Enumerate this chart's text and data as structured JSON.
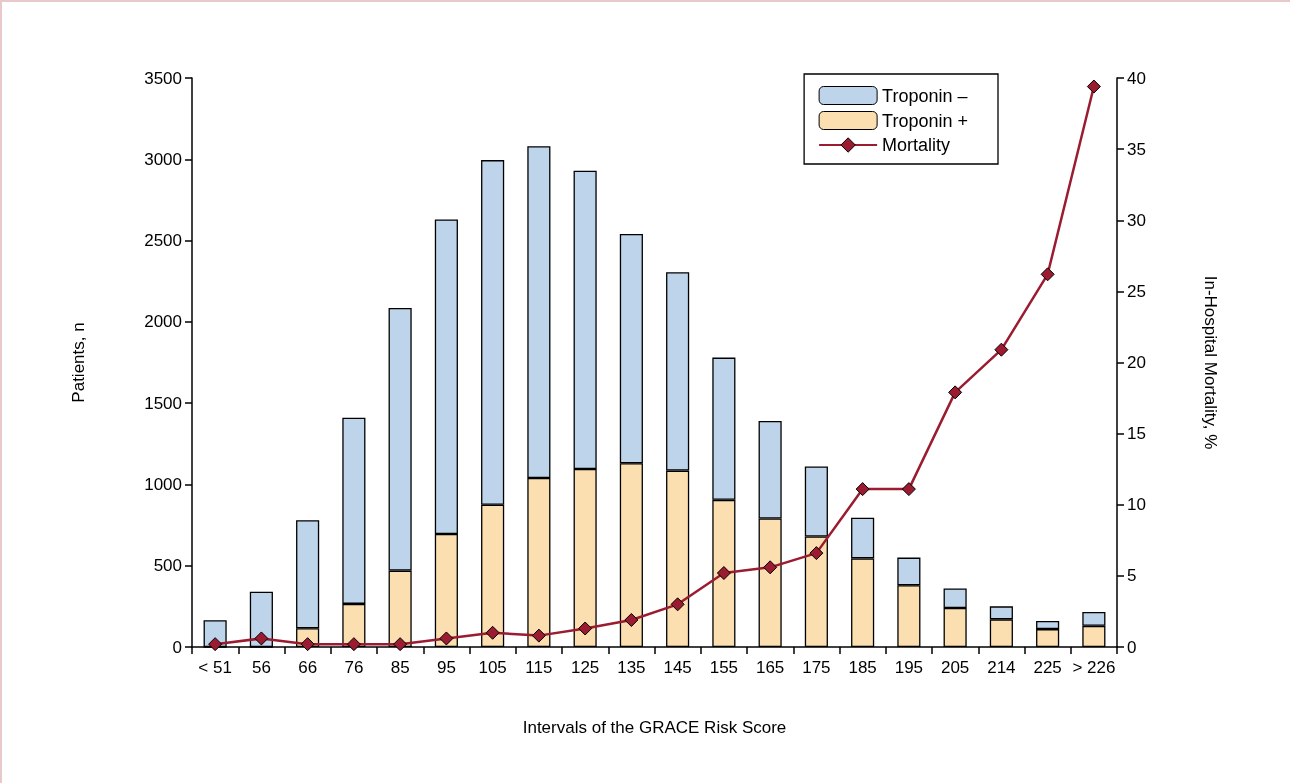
{
  "chart_data": {
    "type": "bar",
    "xlabel": "Intervals of the GRACE Risk Score",
    "ylabel": "Patients, n",
    "y2label": "In-Hospital Mortality, %",
    "categories": [
      "< 51",
      "56",
      "66",
      "76",
      "85",
      "95",
      "105",
      "115",
      "125",
      "135",
      "145",
      "155",
      "165",
      "175",
      "185",
      "195",
      "205",
      "214",
      "225",
      "> 226"
    ],
    "stacked": true,
    "legend": "top right",
    "grid": false,
    "marker": "diamond",
    "line_style": "solid",
    "ylim": [
      0,
      3500
    ],
    "yticks": [
      0,
      500,
      1000,
      1500,
      2000,
      2500,
      3000,
      3500
    ],
    "y2lim": [
      0,
      40
    ],
    "y2ticks": [
      0,
      5,
      10,
      15,
      20,
      25,
      30,
      35,
      40
    ],
    "series": [
      {
        "name": "Troponin +",
        "color": "#fbdfb0",
        "values": [
          0,
          0,
          115,
          265,
          470,
          695,
          875,
          1040,
          1095,
          1130,
          1085,
          905,
          790,
          680,
          545,
          380,
          240,
          170,
          110,
          130
        ]
      },
      {
        "name": "Troponin –",
        "color": "#bdd4ea",
        "values": [
          165,
          340,
          665,
          1145,
          1615,
          1935,
          2120,
          2040,
          1835,
          1410,
          1220,
          875,
          600,
          430,
          250,
          170,
          120,
          80,
          50,
          85
        ]
      },
      {
        "name": "Mortality",
        "type": "line",
        "axis": "y2",
        "color": "#9b1b30",
        "values": [
          0.2,
          0.6,
          0.2,
          0.2,
          0.2,
          0.6,
          1.0,
          0.8,
          1.3,
          1.9,
          3.0,
          5.2,
          5.6,
          6.6,
          11.1,
          11.1,
          17.9,
          20.9,
          26.2,
          39.4
        ]
      }
    ]
  }
}
